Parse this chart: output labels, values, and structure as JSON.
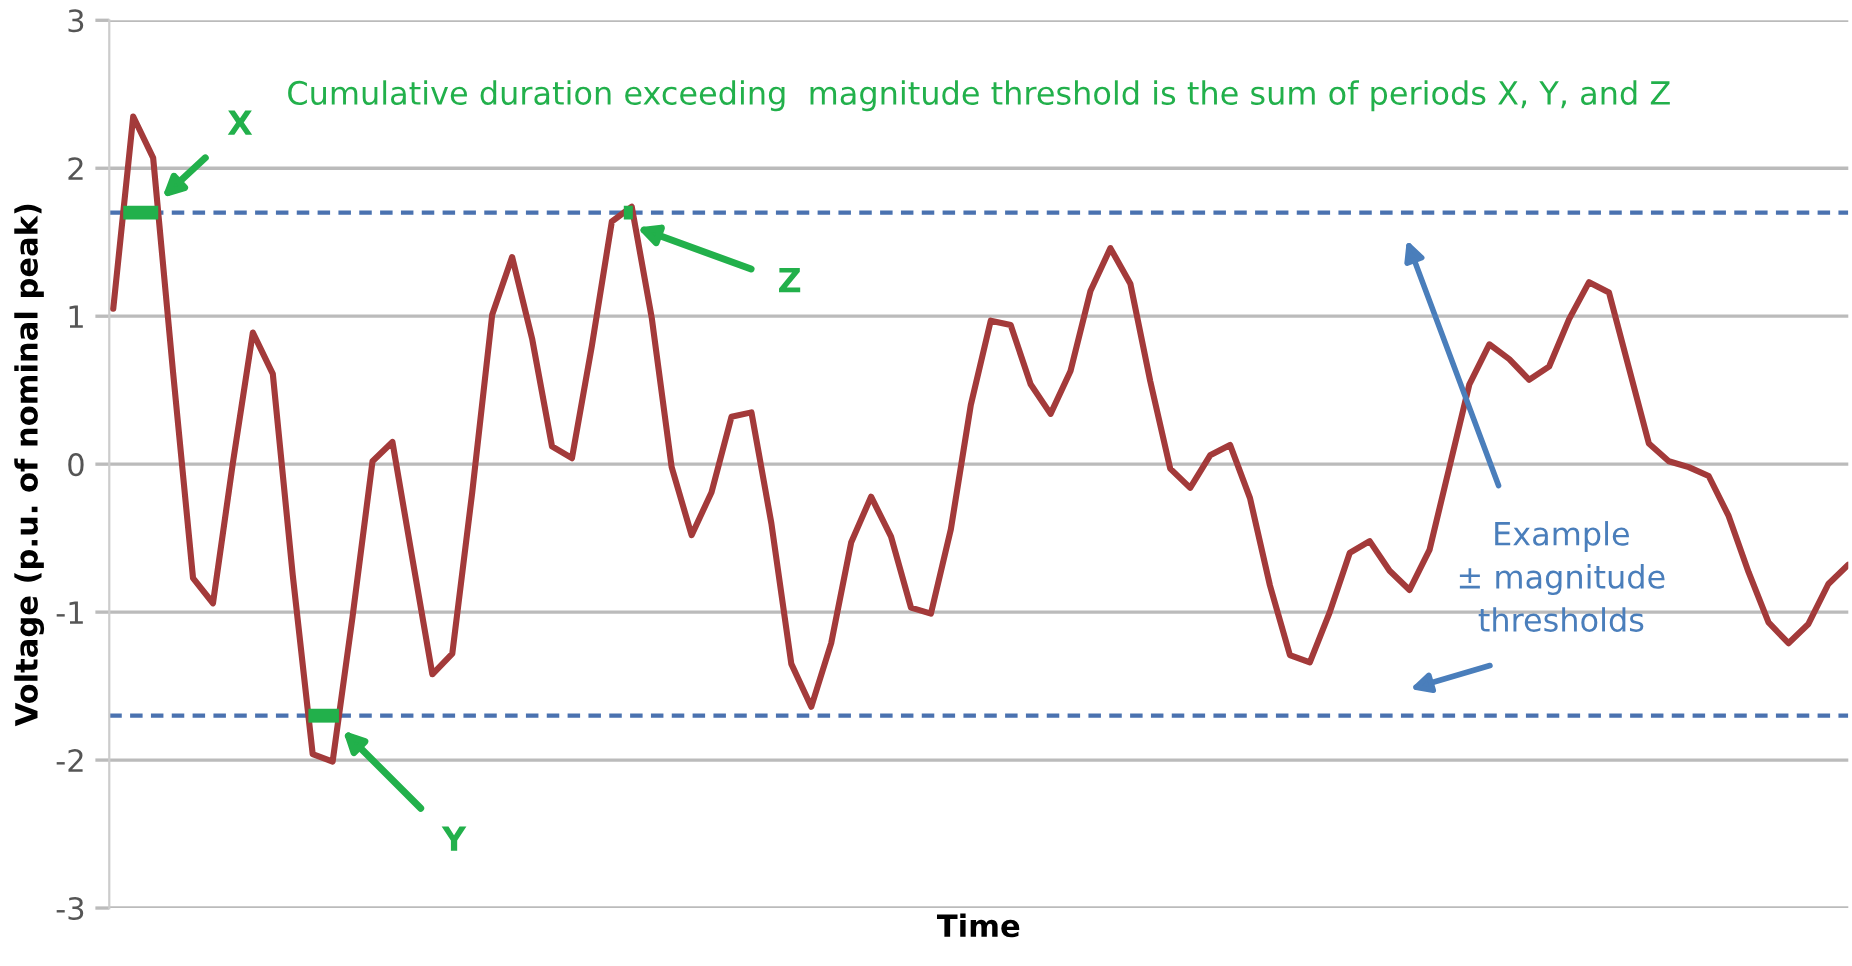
{
  "chart_data": {
    "type": "line",
    "xlabel": "Time",
    "ylabel": "Voltage (p.u. of nominal peak)",
    "categories": [
      null,
      null,
      null,
      null,
      null,
      null,
      null,
      null,
      null,
      null,
      null,
      null,
      null,
      null,
      null,
      null,
      null,
      null,
      null,
      null,
      null,
      null,
      null,
      null,
      null,
      null,
      null,
      null,
      null,
      null,
      null,
      null,
      null,
      null,
      null,
      null,
      null,
      null,
      null,
      null,
      null,
      null,
      null,
      null,
      null,
      null,
      null,
      null,
      null,
      null,
      null,
      null,
      null,
      null,
      null,
      null,
      null,
      null,
      null,
      null,
      null,
      null,
      null,
      null,
      null,
      null,
      null,
      null,
      null,
      null,
      null,
      null,
      null,
      null,
      null,
      null,
      null,
      null,
      null,
      null,
      null,
      null,
      null,
      null,
      null,
      null,
      null,
      null
    ],
    "series": [
      {
        "color": "#a33a3a",
        "values": [
          1.05,
          2.35,
          2.07,
          0.62,
          -0.77,
          -0.94,
          0.01,
          0.89,
          0.61,
          -0.75,
          -1.96,
          -2.01,
          -1.03,
          0.02,
          0.15,
          -0.64,
          -1.42,
          -1.28,
          -0.19,
          1.01,
          1.4,
          0.85,
          0.12,
          0.04,
          0.8,
          1.64,
          1.74,
          0.99,
          -0.02,
          -0.48,
          -0.19,
          0.32,
          0.35,
          -0.4,
          -1.35,
          -1.64,
          -1.21,
          -0.53,
          -0.22,
          -0.49,
          -0.97,
          -1.01,
          -0.44,
          0.4,
          0.97,
          0.94,
          0.54,
          0.34,
          0.63,
          1.17,
          1.46,
          1.22,
          0.56,
          -0.03,
          -0.16,
          0.06,
          0.13,
          -0.23,
          -0.82,
          -1.29,
          -1.34,
          -1.0,
          -0.6,
          -0.52,
          -0.72,
          -0.85,
          -0.58,
          -0.02,
          0.54,
          0.81,
          0.71,
          0.57,
          0.66,
          0.98,
          1.23,
          1.16,
          0.65,
          0.14,
          0.02,
          -0.02,
          -0.08,
          -0.35,
          -0.73,
          -1.07,
          -1.21,
          -1.08,
          -0.81,
          -0.68
        ]
      }
    ],
    "ylim": [
      -3,
      3
    ],
    "yticks": [
      -3,
      -2,
      -1,
      0,
      1,
      2,
      3
    ],
    "grid": "y",
    "tick_labels": "y",
    "line_style": "solid",
    "marker": "none",
    "ref_lines": [
      {
        "axis": "y",
        "value": 1.7,
        "color": "#4a72b0",
        "line_style": "dashed"
      },
      {
        "axis": "y",
        "value": -1.7,
        "color": "#4a72b0",
        "line_style": "dashed"
      }
    ],
    "annotations": [
      "Cumulative duration exceeding  magnitude threshold is the sum of periods X, Y, and Z",
      "Example\n± magnitude\nthresholds",
      "X",
      "Y",
      "Z"
    ]
  }
}
